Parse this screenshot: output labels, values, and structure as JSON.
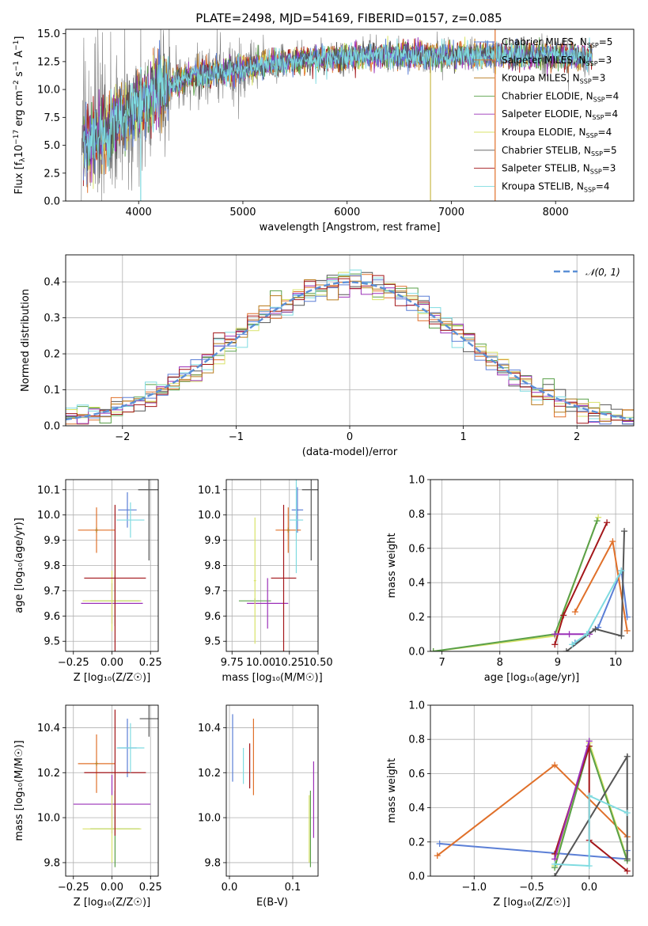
{
  "figure": {
    "title": "PLATE=2498, MJD=54169, FIBERID=0157, z=0.085"
  },
  "models": [
    {
      "label": "Chabrier MILES, N",
      "suffix": "=5",
      "color": "#5b7fd6"
    },
    {
      "label": "Salpeter MILES, N",
      "suffix": "=3",
      "color": "#e0702a"
    },
    {
      "label": "Kroupa MILES, N",
      "suffix": "=3",
      "color": "#b97c1f"
    },
    {
      "label": "Chabrier ELODIE, N",
      "suffix": "=4",
      "color": "#5aa04a"
    },
    {
      "label": "Salpeter ELODIE, N",
      "suffix": "=4",
      "color": "#9b30b8"
    },
    {
      "label": "Kroupa ELODIE, N",
      "suffix": "=4",
      "color": "#d9e36a"
    },
    {
      "label": "Chabrier STELIB, N",
      "suffix": "=5",
      "color": "#555555"
    },
    {
      "label": "Salpeter STELIB, N",
      "suffix": "=3",
      "color": "#a3161a"
    },
    {
      "label": "Kroupa STELIB, N",
      "suffix": "=4",
      "color": "#7fdbe0"
    }
  ],
  "legend_sub": "SSP",
  "chart_data": [
    {
      "type": "line",
      "id": "spectrum",
      "xlabel": "wavelength [Angstrom, rest frame]",
      "ylabel_parts": [
        "Flux [f",
        "λ",
        "10",
        "−17",
        " erg cm",
        "−2",
        " s",
        "−1",
        " A",
        "−1",
        "]"
      ],
      "xlim": [
        3300,
        8750
      ],
      "ylim": [
        0,
        15.4
      ],
      "xticks": [
        4000,
        5000,
        6000,
        7000,
        8000
      ],
      "yticks": [
        0.0,
        2.5,
        5.0,
        7.5,
        10.0,
        12.5,
        15.0
      ],
      "ytick_labels": [
        "0.0",
        "2.5",
        "5.0",
        "7.5",
        "10.0",
        "12.5",
        "15.0"
      ],
      "data_envelope": {
        "x": [
          3450,
          3600,
          3800,
          4000,
          4200,
          4500,
          5000,
          5500,
          6000,
          6500,
          7000,
          7500,
          8000,
          8350
        ],
        "y": [
          5.0,
          5.6,
          7.2,
          8.6,
          10.0,
          11.2,
          11.8,
          12.6,
          12.9,
          13.1,
          13.0,
          13.1,
          13.0,
          12.9
        ]
      },
      "grid": false,
      "legend": "upper-right"
    },
    {
      "type": "step",
      "id": "residuals",
      "xlabel": "(data-model)/error",
      "ylabel": "Normed distribution",
      "xlim": [
        -2.5,
        2.5
      ],
      "ylim": [
        0,
        0.475
      ],
      "xticks": [
        -2,
        -1,
        0,
        1,
        2
      ],
      "xtick_labels": [
        "−2",
        "−1",
        "0",
        "1",
        "2"
      ],
      "yticks": [
        0.0,
        0.1,
        0.2,
        0.3,
        0.4
      ],
      "ytick_labels": [
        "0.0",
        "0.1",
        "0.2",
        "0.3",
        "0.4"
      ],
      "bin_width": 0.1,
      "reference": {
        "label": "𝒩(0, 1)",
        "mean": 0,
        "sigma": 1,
        "color": "#5b8fd6"
      },
      "grid": true,
      "legend": "upper-right"
    },
    {
      "type": "scatter",
      "id": "age-vs-Z",
      "xlabel": "Z [log₁₀(Z/Z☉)]",
      "ylabel": "age  [log₁₀(age/yr)]",
      "xlim": [
        -0.3,
        0.3
      ],
      "ylim": [
        9.46,
        10.14
      ],
      "xticks": [
        -0.25,
        0.0,
        0.25
      ],
      "xtick_labels": [
        "−0.25",
        "0.00",
        "0.25"
      ],
      "yticks": [
        9.5,
        9.6,
        9.7,
        9.8,
        9.9,
        10.0,
        10.1
      ],
      "ytick_labels": [
        "9.5",
        "9.6",
        "9.7",
        "9.8",
        "9.9",
        "10.0",
        "10.1"
      ],
      "points": [
        {
          "m": 0,
          "x": 0.1,
          "y": 10.02,
          "xerr": 0.06,
          "yerr": 0.07
        },
        {
          "m": 1,
          "x": -0.1,
          "y": 9.94,
          "xerr": 0.12,
          "yerr": 0.09
        },
        {
          "m": 2,
          "x": -0.1,
          "y": 9.94,
          "xerr": 0.01,
          "yerr": 0.01
        },
        {
          "m": 3,
          "x": 0.02,
          "y": 9.66,
          "xerr": 0.16,
          "yerr": 0.1
        },
        {
          "m": 4,
          "x": 0.0,
          "y": 9.65,
          "xerr": 0.2,
          "yerr": 0.08
        },
        {
          "m": 5,
          "x": 0.0,
          "y": 9.66,
          "xerr": 0.19,
          "yerr": 0.12
        },
        {
          "m": 6,
          "x": 0.24,
          "y": 10.1,
          "xerr": 0.07,
          "yerr": 0.28
        },
        {
          "m": 7,
          "x": 0.02,
          "y": 9.75,
          "xerr": 0.2,
          "yerr": 0.29
        },
        {
          "m": 8,
          "x": 0.12,
          "y": 9.98,
          "xerr": 0.09,
          "yerr": 0.07
        }
      ],
      "grid": true
    },
    {
      "type": "scatter",
      "id": "age-vs-mass",
      "xlabel": "mass [log₁₀(M/M☉)]",
      "ylabel": "",
      "xlim": [
        9.7,
        10.5
      ],
      "ylim": [
        9.46,
        10.14
      ],
      "xticks": [
        9.75,
        10.0,
        10.25,
        10.5
      ],
      "xtick_labels": [
        "9.75",
        "10.00",
        "10.25",
        "10.50"
      ],
      "yticks": [
        9.5,
        9.6,
        9.7,
        9.8,
        9.9,
        10.0,
        10.1
      ],
      "ytick_labels": [
        "9.5",
        "9.6",
        "9.7",
        "9.8",
        "9.9",
        "10.0",
        "10.1"
      ],
      "points": [
        {
          "m": 0,
          "x": 10.32,
          "y": 10.02,
          "xerr": 0.05,
          "yerr": 0.09
        },
        {
          "m": 1,
          "x": 10.24,
          "y": 9.94,
          "xerr": 0.11,
          "yerr": 0.09
        },
        {
          "m": 2,
          "x": 10.24,
          "y": 9.94,
          "xerr": 0.01,
          "yerr": 0.01
        },
        {
          "m": 3,
          "x": 9.95,
          "y": 9.66,
          "xerr": 0.14,
          "yerr": 0.01
        },
        {
          "m": 4,
          "x": 10.06,
          "y": 9.65,
          "xerr": 0.18,
          "yerr": 0.1
        },
        {
          "m": 5,
          "x": 9.95,
          "y": 9.74,
          "xerr": 0.01,
          "yerr": 0.25
        },
        {
          "m": 6,
          "x": 10.44,
          "y": 10.1,
          "xerr": 0.08,
          "yerr": 0.28
        },
        {
          "m": 7,
          "x": 10.2,
          "y": 9.75,
          "xerr": 0.11,
          "yerr": 0.29
        },
        {
          "m": 8,
          "x": 10.31,
          "y": 9.98,
          "xerr": 0.06,
          "yerr": 0.21
        }
      ],
      "grid": true
    },
    {
      "type": "line",
      "id": "weight-vs-age",
      "xlabel": "age  [log₁₀(age/yr)]",
      "ylabel": "mass weight",
      "xlim": [
        6.8,
        10.3
      ],
      "ylim": [
        0,
        1.0
      ],
      "xticks": [
        7,
        8,
        9,
        10
      ],
      "xtick_labels": [
        "7",
        "8",
        "9",
        "10"
      ],
      "yticks": [
        0.0,
        0.2,
        0.4,
        0.6,
        0.8,
        1.0
      ],
      "ytick_labels": [
        "0.0",
        "0.2",
        "0.4",
        "0.6",
        "0.8",
        "1.0"
      ],
      "series": [
        {
          "m": 5,
          "x": [
            6.85,
            8.95,
            9.7
          ],
          "y": [
            0.0,
            0.09,
            0.78
          ]
        },
        {
          "m": 3,
          "x": [
            6.85,
            8.95,
            9.68
          ],
          "y": [
            0.0,
            0.1,
            0.76
          ]
        },
        {
          "m": 0,
          "x": [
            9.3,
            9.7,
            10.1,
            10.2
          ],
          "y": [
            0.05,
            0.14,
            0.47,
            0.2
          ]
        },
        {
          "m": 1,
          "x": [
            9.3,
            9.95,
            10.2
          ],
          "y": [
            0.23,
            0.64,
            0.12
          ]
        },
        {
          "m": 7,
          "x": [
            8.95,
            9.1,
            9.85
          ],
          "y": [
            0.04,
            0.21,
            0.75
          ]
        },
        {
          "m": 4,
          "x": [
            8.95,
            9.2,
            9.55
          ],
          "y": [
            0.1,
            0.1,
            0.1
          ]
        },
        {
          "m": 6,
          "x": [
            9.15,
            9.65,
            10.1,
            10.15
          ],
          "y": [
            0.0,
            0.13,
            0.09,
            0.7
          ]
        },
        {
          "m": 8,
          "x": [
            9.25,
            9.5,
            10.1
          ],
          "y": [
            0.04,
            0.1,
            0.47
          ]
        }
      ],
      "grid": true
    },
    {
      "type": "scatter",
      "id": "mass-vs-Z",
      "xlabel": "Z [log₁₀(Z/Z☉)]",
      "ylabel": "mass [log₁₀(M/M☉)]",
      "xlim": [
        -0.3,
        0.3
      ],
      "ylim": [
        9.74,
        10.5
      ],
      "xticks": [
        -0.25,
        0.0,
        0.25
      ],
      "xtick_labels": [
        "−0.25",
        "0.00",
        "0.25"
      ],
      "yticks": [
        9.8,
        10.0,
        10.2,
        10.4
      ],
      "ytick_labels": [
        "9.8",
        "10.0",
        "10.2",
        "10.4"
      ],
      "points": [
        {
          "m": 0,
          "x": 0.1,
          "y": 10.31,
          "xerr": 0.06,
          "yerr": 0.13
        },
        {
          "m": 1,
          "x": -0.1,
          "y": 10.24,
          "xerr": 0.12,
          "yerr": 0.13
        },
        {
          "m": 2,
          "x": -0.1,
          "y": 10.24,
          "xerr": 0.01,
          "yerr": 0.01
        },
        {
          "m": 3,
          "x": 0.02,
          "y": 9.95,
          "xerr": 0.16,
          "yerr": 0.17
        },
        {
          "m": 4,
          "x": 0.0,
          "y": 10.06,
          "xerr": 0.25,
          "yerr": 0.13
        },
        {
          "m": 5,
          "x": 0.0,
          "y": 9.95,
          "xerr": 0.19,
          "yerr": 0.15
        },
        {
          "m": 6,
          "x": 0.24,
          "y": 10.44,
          "xerr": 0.06,
          "yerr": 0.08
        },
        {
          "m": 7,
          "x": 0.02,
          "y": 10.2,
          "xerr": 0.2,
          "yerr": 0.28
        },
        {
          "m": 8,
          "x": 0.12,
          "y": 10.31,
          "xerr": 0.09,
          "yerr": 0.11
        }
      ],
      "grid": true
    },
    {
      "type": "scatter",
      "id": "mass-vs-ebv",
      "xlabel": "E(B-V)",
      "ylabel": "",
      "xlim": [
        -0.005,
        0.14
      ],
      "ylim": [
        9.74,
        10.5
      ],
      "xticks": [
        0.0,
        0.1
      ],
      "xtick_labels": [
        "0.0",
        "0.1"
      ],
      "yticks": [
        9.8,
        10.0,
        10.2,
        10.4
      ],
      "ytick_labels": [
        "9.8",
        "10.0",
        "10.2",
        "10.4"
      ],
      "points": [
        {
          "m": 0,
          "x": 0.005,
          "y": 10.31,
          "xerr": 0.0,
          "yerr": 0.15
        },
        {
          "m": 8,
          "x": 0.022,
          "y": 10.23,
          "xerr": 0.0,
          "yerr": 0.08
        },
        {
          "m": 7,
          "x": 0.032,
          "y": 10.23,
          "xerr": 0.0,
          "yerr": 0.1
        },
        {
          "m": 1,
          "x": 0.038,
          "y": 10.27,
          "xerr": 0.0,
          "yerr": 0.17
        },
        {
          "m": 3,
          "x": 0.128,
          "y": 9.95,
          "xerr": 0.0,
          "yerr": 0.17
        },
        {
          "m": 4,
          "x": 0.133,
          "y": 10.08,
          "xerr": 0.0,
          "yerr": 0.17
        },
        {
          "m": 5,
          "x": 0.126,
          "y": 9.95,
          "xerr": 0.0,
          "yerr": 0.15
        }
      ],
      "grid": true
    },
    {
      "type": "line",
      "id": "weight-vs-Z",
      "xlabel": "Z [log₁₀(Z/Z☉)]",
      "ylabel": "mass weight",
      "xlim": [
        -1.38,
        0.38
      ],
      "ylim": [
        0,
        1.0
      ],
      "xticks": [
        -1.0,
        -0.5,
        0.0
      ],
      "xtick_labels": [
        "−1.0",
        "−0.5",
        "0.0"
      ],
      "yticks": [
        0.0,
        0.2,
        0.4,
        0.6,
        0.8,
        1.0
      ],
      "ytick_labels": [
        "0.0",
        "0.2",
        "0.4",
        "0.6",
        "0.8",
        "1.0"
      ],
      "series": [
        {
          "m": 0,
          "x": [
            -1.3,
            0.33,
            0.33
          ],
          "y": [
            0.19,
            0.1,
            0.15
          ]
        },
        {
          "m": 1,
          "x": [
            -1.32,
            -0.3,
            0.33
          ],
          "y": [
            0.12,
            0.65,
            0.23
          ]
        },
        {
          "m": 5,
          "x": [
            -0.3,
            0.0,
            0.33
          ],
          "y": [
            0.06,
            0.78,
            0.1
          ]
        },
        {
          "m": 3,
          "x": [
            -0.3,
            0.0,
            0.33
          ],
          "y": [
            0.05,
            0.76,
            0.09
          ]
        },
        {
          "m": 7,
          "x": [
            -0.3,
            0.0,
            0.0,
            0.33
          ],
          "y": [
            0.13,
            0.76,
            0.21,
            0.03
          ]
        },
        {
          "m": 4,
          "x": [
            -0.3,
            0.0
          ],
          "y": [
            0.1,
            0.79
          ]
        },
        {
          "m": 6,
          "x": [
            -0.3,
            0.33,
            0.33
          ],
          "y": [
            0.0,
            0.7,
            0.1
          ]
        },
        {
          "m": 8,
          "x": [
            -0.3,
            0.0,
            0.0,
            0.33
          ],
          "y": [
            0.07,
            0.06,
            0.47,
            0.37
          ]
        }
      ],
      "grid": true
    }
  ]
}
